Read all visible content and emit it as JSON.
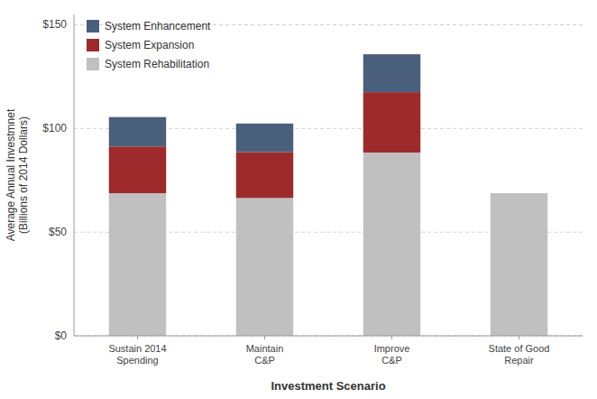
{
  "chart_data": {
    "type": "bar",
    "stacked": true,
    "x_label": "Investment Scenario",
    "y_label": "Average Annual Investmnet\n(Billions of 2014 Dollars)",
    "categories": [
      "Sustain 2014\nSpending",
      "Maintain\nC&P",
      "Improve\nC&P",
      "State of Good\nRepair"
    ],
    "series": [
      {
        "name": "System Rehabilitation",
        "color": "#c0c0c0",
        "values": [
          68.8,
          66.5,
          88.4,
          68.8
        ]
      },
      {
        "name": "System Expansion",
        "color": "#9e2a2b",
        "values": [
          22.5,
          22.1,
          29.1,
          0.0
        ]
      },
      {
        "name": "System Enhancement",
        "color": "#4a5f7c",
        "values": [
          14.2,
          13.8,
          18.3,
          0.0
        ]
      }
    ],
    "ylim": [
      0,
      155
    ],
    "yticks": [
      {
        "value": 0,
        "label": "$0"
      },
      {
        "value": 50,
        "label": "$50"
      },
      {
        "value": 100,
        "label": "$100"
      },
      {
        "value": 150,
        "label": "$150"
      }
    ],
    "grid": true,
    "legend": "upper left"
  }
}
